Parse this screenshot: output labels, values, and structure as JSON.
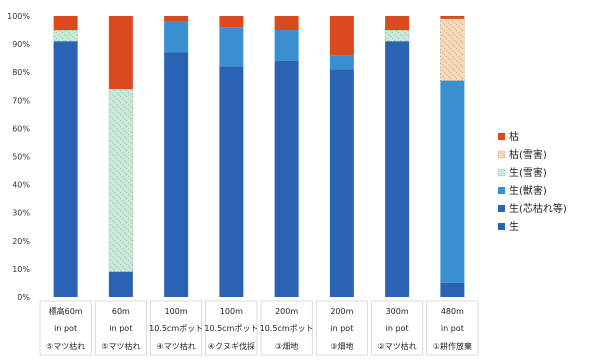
{
  "chart_data": {
    "type": "bar",
    "stacked": true,
    "ylim": [
      0,
      100
    ],
    "yticks": [
      0,
      10,
      20,
      30,
      40,
      50,
      60,
      70,
      80,
      90,
      100
    ],
    "ytick_suffix": "%",
    "grid": false,
    "legend_position": "right",
    "categories": [
      {
        "line1": "標高60m",
        "line2": "in pot",
        "line3": "⑤マツ枯れ"
      },
      {
        "line1": "60m",
        "line2": "in pot",
        "line3": "⑤マツ枯れ"
      },
      {
        "line1": "100m",
        "line2": "10.5cmポット",
        "line3": "④マツ枯れ"
      },
      {
        "line1": "100m",
        "line2": "10.5cmポット",
        "line3": "④クヌギ伐採"
      },
      {
        "line1": "200m",
        "line2": "10.5cmポット",
        "line3": "③畑地"
      },
      {
        "line1": "200m",
        "line2": "in pot",
        "line3": "③畑地"
      },
      {
        "line1": "300m",
        "line2": "in pot",
        "line3": "②マツ枯れ"
      },
      {
        "line1": "480m",
        "line2": "in pot",
        "line3": "①耕作放棄"
      }
    ],
    "series": [
      {
        "name": "生",
        "color": "#2a63b3",
        "hatch": "none",
        "values": [
          91,
          9,
          87,
          82,
          84,
          81,
          91,
          5
        ]
      },
      {
        "name": "生(芯枯れ等)",
        "color": "#2a63b3",
        "hatch": "none",
        "values": [
          0,
          0,
          0,
          0,
          0,
          0,
          0,
          0
        ]
      },
      {
        "name": "生(獣害)",
        "color": "#3a8fd0",
        "hatch": "none",
        "values": [
          0,
          0,
          11,
          14,
          11,
          5,
          0,
          72
        ]
      },
      {
        "name": "生(雪害)",
        "color": "#c8ead9",
        "hatch": "dash",
        "values": [
          4,
          65,
          0,
          0,
          0,
          0,
          4,
          0
        ]
      },
      {
        "name": "枯(雪害)",
        "color": "#f5d8b6",
        "hatch": "dash",
        "values": [
          0,
          0,
          0,
          0,
          0,
          0,
          0,
          22
        ]
      },
      {
        "name": "枯",
        "color": "#d94a1e",
        "hatch": "none",
        "values": [
          5,
          26,
          2,
          4,
          5,
          14,
          5,
          1
        ]
      }
    ],
    "legend_order": [
      "枯",
      "枯(雪害)",
      "生(雪害)",
      "生(獣害)",
      "生(芯枯れ等)",
      "生"
    ]
  }
}
